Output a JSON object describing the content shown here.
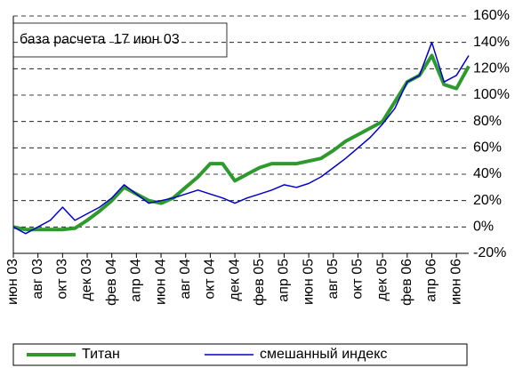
{
  "chart_data": {
    "type": "line",
    "annotation": "база расчета  17 июн 03",
    "categories": [
      "июн 03",
      null,
      "авг 03",
      null,
      "окт 03",
      null,
      "дек 03",
      null,
      "фев 04",
      null,
      "апр 04",
      null,
      "июн 04",
      null,
      "авг 04",
      null,
      "окт 04",
      null,
      "дек 04",
      null,
      "фев 05",
      null,
      "апр 05",
      null,
      "июн 05",
      null,
      "авг 05",
      null,
      "окт 05",
      null,
      "дек 05",
      null,
      "фев 06",
      null,
      "апр 06",
      null,
      "июн 06",
      null
    ],
    "series": [
      {
        "name": "Титан",
        "color": "#2e9a2e",
        "width": 4,
        "values": [
          0,
          -2,
          -2,
          -2,
          -2,
          -1,
          5,
          12,
          20,
          30,
          25,
          20,
          18,
          22,
          30,
          38,
          48,
          48,
          35,
          40,
          45,
          48,
          48,
          48,
          50,
          52,
          58,
          65,
          70,
          75,
          80,
          95,
          110,
          115,
          130,
          108,
          105,
          122
        ]
      },
      {
        "name": "смешанный индекс",
        "color": "#0000cc",
        "width": 1.5,
        "values": [
          0,
          -5,
          0,
          5,
          15,
          5,
          10,
          15,
          22,
          32,
          25,
          18,
          20,
          22,
          25,
          28,
          25,
          22,
          18,
          22,
          25,
          28,
          32,
          30,
          33,
          38,
          45,
          52,
          60,
          68,
          78,
          90,
          110,
          115,
          140,
          110,
          115,
          130
        ]
      }
    ],
    "ylim": [
      -20,
      160
    ],
    "yticks": [
      {
        "value": -20,
        "label": "-20%"
      },
      {
        "value": 0,
        "label": "0%"
      },
      {
        "value": 20,
        "label": "20%"
      },
      {
        "value": 40,
        "label": "40%"
      },
      {
        "value": 60,
        "label": "60%"
      },
      {
        "value": 80,
        "label": "80%"
      },
      {
        "value": 100,
        "label": "100%"
      },
      {
        "value": 120,
        "label": "120%"
      },
      {
        "value": 140,
        "label": "140%"
      },
      {
        "value": 160,
        "label": "160%"
      }
    ],
    "grid": true
  }
}
